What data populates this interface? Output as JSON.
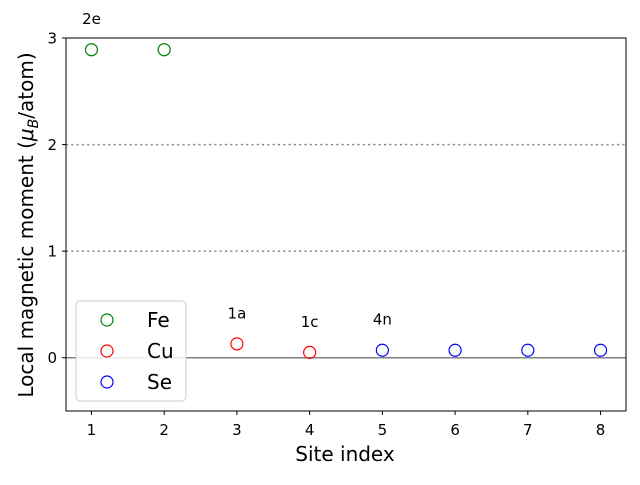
{
  "chart_data": {
    "type": "scatter",
    "xlabel": "Site index",
    "ylabel_main": "Local magnetic moment (",
    "ylabel_mu": "μ",
    "ylabel_sub": "B",
    "ylabel_tail": "/atom)",
    "xlim": [
      0.65,
      8.35
    ],
    "ylim": [
      -0.5,
      3
    ],
    "xticks": [
      "1",
      "2",
      "3",
      "4",
      "5",
      "6",
      "7",
      "8"
    ],
    "yticks": [
      "0",
      "1",
      "2",
      "3"
    ],
    "hlines": [
      {
        "y": 0,
        "style": "solid",
        "color": "#808080"
      },
      {
        "y": 1,
        "style": "dotted",
        "color": "#808080"
      },
      {
        "y": 2,
        "style": "dotted",
        "color": "#808080"
      }
    ],
    "series": [
      {
        "name": "Fe",
        "color": "#008000",
        "x": [
          1,
          2
        ],
        "y": [
          2.89,
          2.89
        ]
      },
      {
        "name": "Cu",
        "color": "#ff0000",
        "x": [
          3,
          4
        ],
        "y": [
          0.13,
          0.05
        ]
      },
      {
        "name": "Se",
        "color": "#0000ff",
        "x": [
          5,
          6,
          7,
          8
        ],
        "y": [
          0.07,
          0.07,
          0.07,
          0.07
        ]
      }
    ],
    "annotations": [
      {
        "text": "2e",
        "x": 1,
        "y": 3.13
      },
      {
        "text": "1a",
        "x": 3,
        "y": 0.37
      },
      {
        "text": "1c",
        "x": 4,
        "y": 0.29
      },
      {
        "text": "4n",
        "x": 5,
        "y": 0.31
      }
    ],
    "legend": {
      "placement": "lower-left",
      "entries": [
        "Fe",
        "Cu",
        "Se"
      ]
    },
    "marker": "open-circle",
    "grid": false
  }
}
